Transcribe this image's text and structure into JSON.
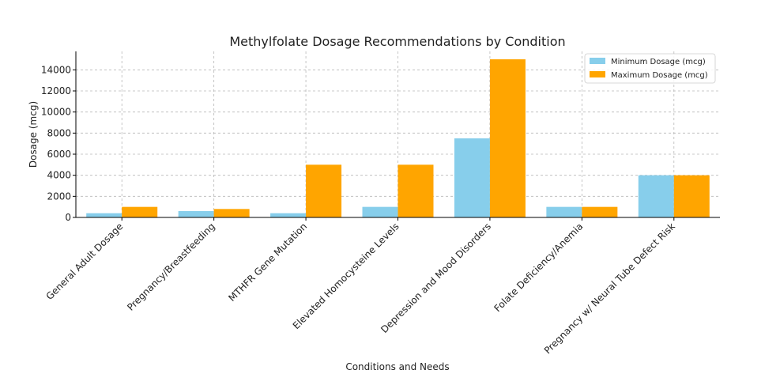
{
  "chart_data": {
    "type": "bar",
    "title": "Methylfolate Dosage Recommendations by Condition",
    "xlabel": "Conditions and Needs",
    "ylabel": "Dosage (mcg)",
    "ylim": [
      0,
      15750
    ],
    "yticks": [
      0,
      2000,
      4000,
      6000,
      8000,
      10000,
      12000,
      14000
    ],
    "grid": true,
    "legend_position": "top-right",
    "categories": [
      "General Adult Dosage",
      "Pregnancy/Breastfeeding",
      "MTHFR Gene Mutation",
      "Elevated Homocysteine Levels",
      "Depression and Mood Disorders",
      "Folate Deficiency/Anemia",
      "Pregnancy w/ Neural Tube Defect Risk"
    ],
    "series": [
      {
        "name": "Minimum Dosage (mcg)",
        "color": "#87ceeb",
        "values": [
          400,
          600,
          400,
          1000,
          7500,
          1000,
          4000
        ]
      },
      {
        "name": "Maximum Dosage (mcg)",
        "color": "#ffa500",
        "values": [
          1000,
          800,
          5000,
          5000,
          15000,
          1000,
          4000
        ]
      }
    ]
  }
}
